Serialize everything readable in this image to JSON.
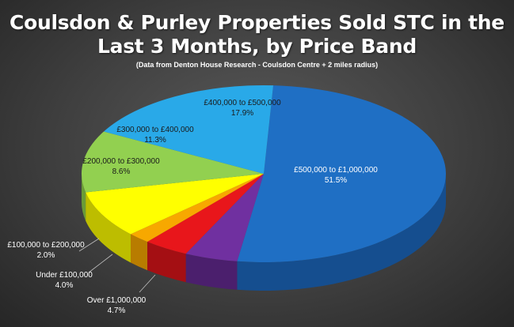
{
  "chart_data": {
    "type": "pie",
    "title_line1": "Coulsdon & Purley Properties Sold STC in the",
    "title_line2": "Last 3 Months, by Price Band",
    "subtitle": "(Data from Denton House Research - Coulsdon Centre + 2 miles radius)",
    "unit": "%",
    "slices": [
      {
        "label": "£500,000 to £1,000,000",
        "value": 51.5,
        "value_label": "51.5%",
        "color": "#1f6fc4",
        "side": "#154e8f"
      },
      {
        "label": "Over £1,000,000",
        "value": 4.7,
        "value_label": "4.7%",
        "color": "#7030a0",
        "side": "#4b1f6d"
      },
      {
        "label": "Under £100,000",
        "value": 4.0,
        "value_label": "4.0%",
        "color": "#e8161b",
        "side": "#a40f13"
      },
      {
        "label": "£100,000 to £200,000",
        "value": 2.0,
        "value_label": "2.0%",
        "color": "#f7a800",
        "side": "#b87c00"
      },
      {
        "label": "£200,000 to £300,000",
        "value": 8.6,
        "value_label": "8.6%",
        "color": "#ffff00",
        "side": "#bdbd00"
      },
      {
        "label": "£300,000 to £400,000",
        "value": 11.3,
        "value_label": "11.3%",
        "color": "#92d050",
        "side": "#6a9b37"
      },
      {
        "label": "£400,000 to £500,000",
        "value": 17.9,
        "value_label": "17.9%",
        "color": "#29a9e8",
        "side": "#1c7aa9"
      }
    ]
  }
}
